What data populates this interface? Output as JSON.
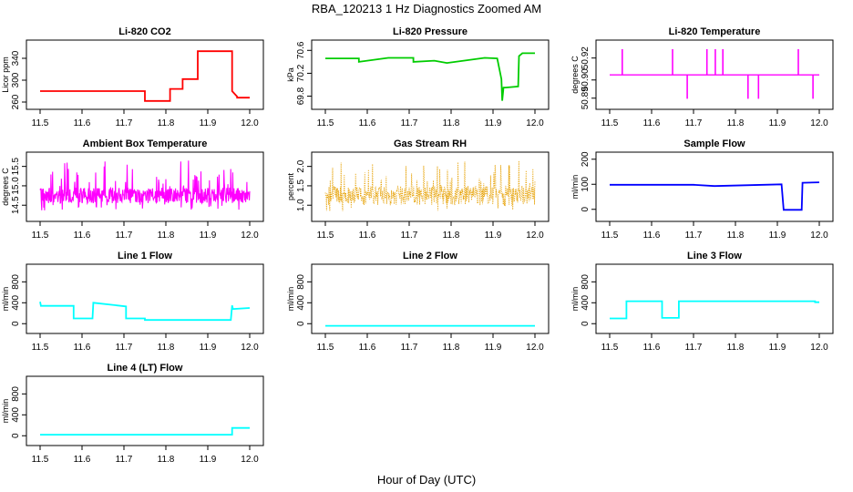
{
  "figure": {
    "title": "RBA_120213  1 Hz Diagnostics Zoomed AM",
    "xlabel": "Hour of Day (UTC)"
  },
  "chart_data": [
    {
      "type": "line",
      "title": "Li-820 CO2",
      "ylabel": "Licor ppm",
      "color": "#ff0000",
      "xlim": [
        11.5,
        12.0
      ],
      "ylim": [
        255,
        365
      ],
      "x_ticks": [
        11.5,
        11.6,
        11.7,
        11.8,
        11.9,
        12.0
      ],
      "y_ticks": [
        "260",
        "300",
        "340"
      ],
      "y_tick_values": [
        260,
        300,
        340
      ],
      "series": [
        {
          "x": [
            11.5,
            11.75,
            11.75,
            11.81,
            11.81,
            11.84,
            11.84,
            11.876,
            11.876,
            11.958,
            11.958,
            11.97,
            11.97,
            12.0
          ],
          "y": [
            280,
            280,
            262,
            262,
            284,
            284,
            302,
            302,
            353,
            353,
            280,
            270,
            268,
            268
          ]
        }
      ]
    },
    {
      "type": "line",
      "title": "Li-820 Pressure",
      "ylabel": "kPa",
      "color": "#00cc00",
      "xlim": [
        11.5,
        12.0
      ],
      "ylim": [
        69.65,
        70.7
      ],
      "x_ticks": [
        11.5,
        11.6,
        11.7,
        11.8,
        11.9,
        12.0
      ],
      "y_ticks": [
        "69.8",
        "70.2",
        "70.6"
      ],
      "y_tick_values": [
        69.8,
        70.2,
        70.6
      ],
      "series": [
        {
          "x": [
            11.5,
            11.58,
            11.58,
            11.65,
            11.71,
            11.71,
            11.76,
            11.79,
            11.83,
            11.88,
            11.91,
            11.92,
            11.922,
            11.925,
            11.93,
            11.96,
            11.962,
            11.97,
            12.0
          ],
          "y": [
            70.46,
            70.46,
            70.4,
            70.47,
            70.47,
            70.4,
            70.42,
            70.38,
            70.42,
            70.47,
            70.46,
            70.1,
            69.72,
            69.95,
            69.95,
            69.97,
            70.5,
            70.55,
            70.55
          ]
        }
      ]
    },
    {
      "type": "line",
      "title": "Li-820 Temperature",
      "ylabel": "degrees C",
      "color": "#ff00ff",
      "xlim": [
        11.5,
        12.0
      ],
      "ylim": [
        50.885,
        50.925
      ],
      "x_ticks": [
        11.5,
        11.6,
        11.7,
        11.8,
        11.9,
        12.0
      ],
      "y_ticks": [
        "50.89",
        "50.90",
        "50.92"
      ],
      "y_tick_values": [
        50.8894,
        50.9015,
        50.9161
      ],
      "baseline": 50.9049,
      "spikes": [
        {
          "x": 11.53,
          "y": 50.922
        },
        {
          "x": 11.65,
          "y": 50.922
        },
        {
          "x": 11.685,
          "y": 50.889
        },
        {
          "x": 11.732,
          "y": 50.922
        },
        {
          "x": 11.752,
          "y": 50.922
        },
        {
          "x": 11.77,
          "y": 50.922
        },
        {
          "x": 11.83,
          "y": 50.889
        },
        {
          "x": 11.855,
          "y": 50.889
        },
        {
          "x": 11.95,
          "y": 50.922
        },
        {
          "x": 11.985,
          "y": 50.889
        }
      ]
    },
    {
      "type": "line",
      "title": "Ambient Box Temperature",
      "ylabel": "degrees C",
      "color": "#ff00ff",
      "xlim": [
        11.5,
        12.0
      ],
      "ylim": [
        14.2,
        15.75
      ],
      "x_ticks": [
        11.5,
        11.6,
        11.7,
        11.8,
        11.9,
        12.0
      ],
      "y_ticks": [
        "14.5",
        "15.0",
        "15.5"
      ],
      "y_tick_values": [
        14.5,
        15.0,
        15.5
      ],
      "noise": {
        "center": 14.75,
        "low": 14.35,
        "high": 15.65,
        "band_low": 14.55,
        "band_high": 14.95
      }
    },
    {
      "type": "scatter",
      "title": "Gas Stream RH",
      "ylabel": "percent",
      "color": "#e6a000",
      "xlim": [
        11.5,
        12.0
      ],
      "ylim": [
        0.7,
        2.25
      ],
      "x_ticks": [
        11.5,
        11.6,
        11.7,
        11.8,
        11.9,
        12.0
      ],
      "y_ticks": [
        "1.0",
        "1.5",
        "2.0"
      ],
      "y_tick_values": [
        1.0,
        1.5,
        2.0
      ],
      "noise": {
        "center": 1.25,
        "low": 0.85,
        "high": 2.15,
        "band_low": 1.0,
        "band_high": 1.5
      }
    },
    {
      "type": "line",
      "title": "Sample Flow",
      "ylabel": "ml/min",
      "color": "#0000ff",
      "xlim": [
        11.5,
        12.0
      ],
      "ylim": [
        -30,
        210
      ],
      "x_ticks": [
        11.5,
        11.6,
        11.7,
        11.8,
        11.9,
        12.0
      ],
      "y_ticks": [
        "0",
        "100",
        "200"
      ],
      "y_tick_values": [
        0,
        100,
        200
      ],
      "series": [
        {
          "x": [
            11.5,
            11.7,
            11.75,
            11.91,
            11.915,
            11.958,
            11.96,
            12.0
          ],
          "y": [
            98,
            98,
            93,
            100,
            -2,
            -2,
            106,
            108
          ]
        }
      ]
    },
    {
      "type": "line",
      "title": "Line 1 Flow",
      "ylabel": "ml/min",
      "color": "#00ffff",
      "xlim": [
        11.5,
        12.0
      ],
      "ylim": [
        -100,
        1050
      ],
      "x_ticks": [
        11.5,
        11.6,
        11.7,
        11.8,
        11.9,
        12.0
      ],
      "y_ticks": [
        "0",
        "400",
        "800"
      ],
      "y_tick_values": [
        0,
        400,
        800
      ],
      "series": [
        {
          "x": [
            11.5,
            11.502,
            11.58,
            11.58,
            11.625,
            11.627,
            11.705,
            11.705,
            11.75,
            11.75,
            11.955,
            11.958,
            11.96,
            12.0
          ],
          "y": [
            420,
            340,
            340,
            100,
            100,
            400,
            330,
            100,
            100,
            70,
            70,
            350,
            280,
            300
          ]
        }
      ]
    },
    {
      "type": "line",
      "title": "Line 2 Flow",
      "ylabel": "ml/min",
      "color": "#00ffff",
      "xlim": [
        11.5,
        12.0
      ],
      "ylim": [
        -100,
        1050
      ],
      "x_ticks": [
        11.5,
        11.6,
        11.7,
        11.8,
        11.9,
        12.0
      ],
      "y_ticks": [
        "0",
        "400",
        "800"
      ],
      "y_tick_values": [
        0,
        400,
        800
      ],
      "series": [
        {
          "x": [
            11.5,
            12.0
          ],
          "y": [
            -40,
            -40
          ]
        }
      ]
    },
    {
      "type": "line",
      "title": "Line 3 Flow",
      "ylabel": "ml/min",
      "color": "#00ffff",
      "xlim": [
        11.5,
        12.0
      ],
      "ylim": [
        -100,
        1050
      ],
      "x_ticks": [
        11.5,
        11.6,
        11.7,
        11.8,
        11.9,
        12.0
      ],
      "y_ticks": [
        "0",
        "400",
        "800"
      ],
      "y_tick_values": [
        0,
        400,
        800
      ],
      "series": [
        {
          "x": [
            11.5,
            11.54,
            11.54,
            11.625,
            11.625,
            11.665,
            11.665,
            11.99,
            11.99,
            12.0
          ],
          "y": [
            100,
            100,
            430,
            430,
            110,
            110,
            430,
            430,
            410,
            410
          ]
        }
      ]
    },
    {
      "type": "line",
      "title": "Line 4 (LT) Flow",
      "ylabel": "ml/min",
      "color": "#00ffff",
      "xlim": [
        11.5,
        12.0
      ],
      "ylim": [
        -100,
        1050
      ],
      "x_ticks": [
        11.5,
        11.6,
        11.7,
        11.8,
        11.9,
        12.0
      ],
      "y_ticks": [
        "0",
        "400",
        "800"
      ],
      "y_tick_values": [
        0,
        400,
        800
      ],
      "series": [
        {
          "x": [
            11.5,
            11.958,
            11.958,
            12.0
          ],
          "y": [
            20,
            20,
            150,
            150
          ]
        }
      ]
    }
  ]
}
